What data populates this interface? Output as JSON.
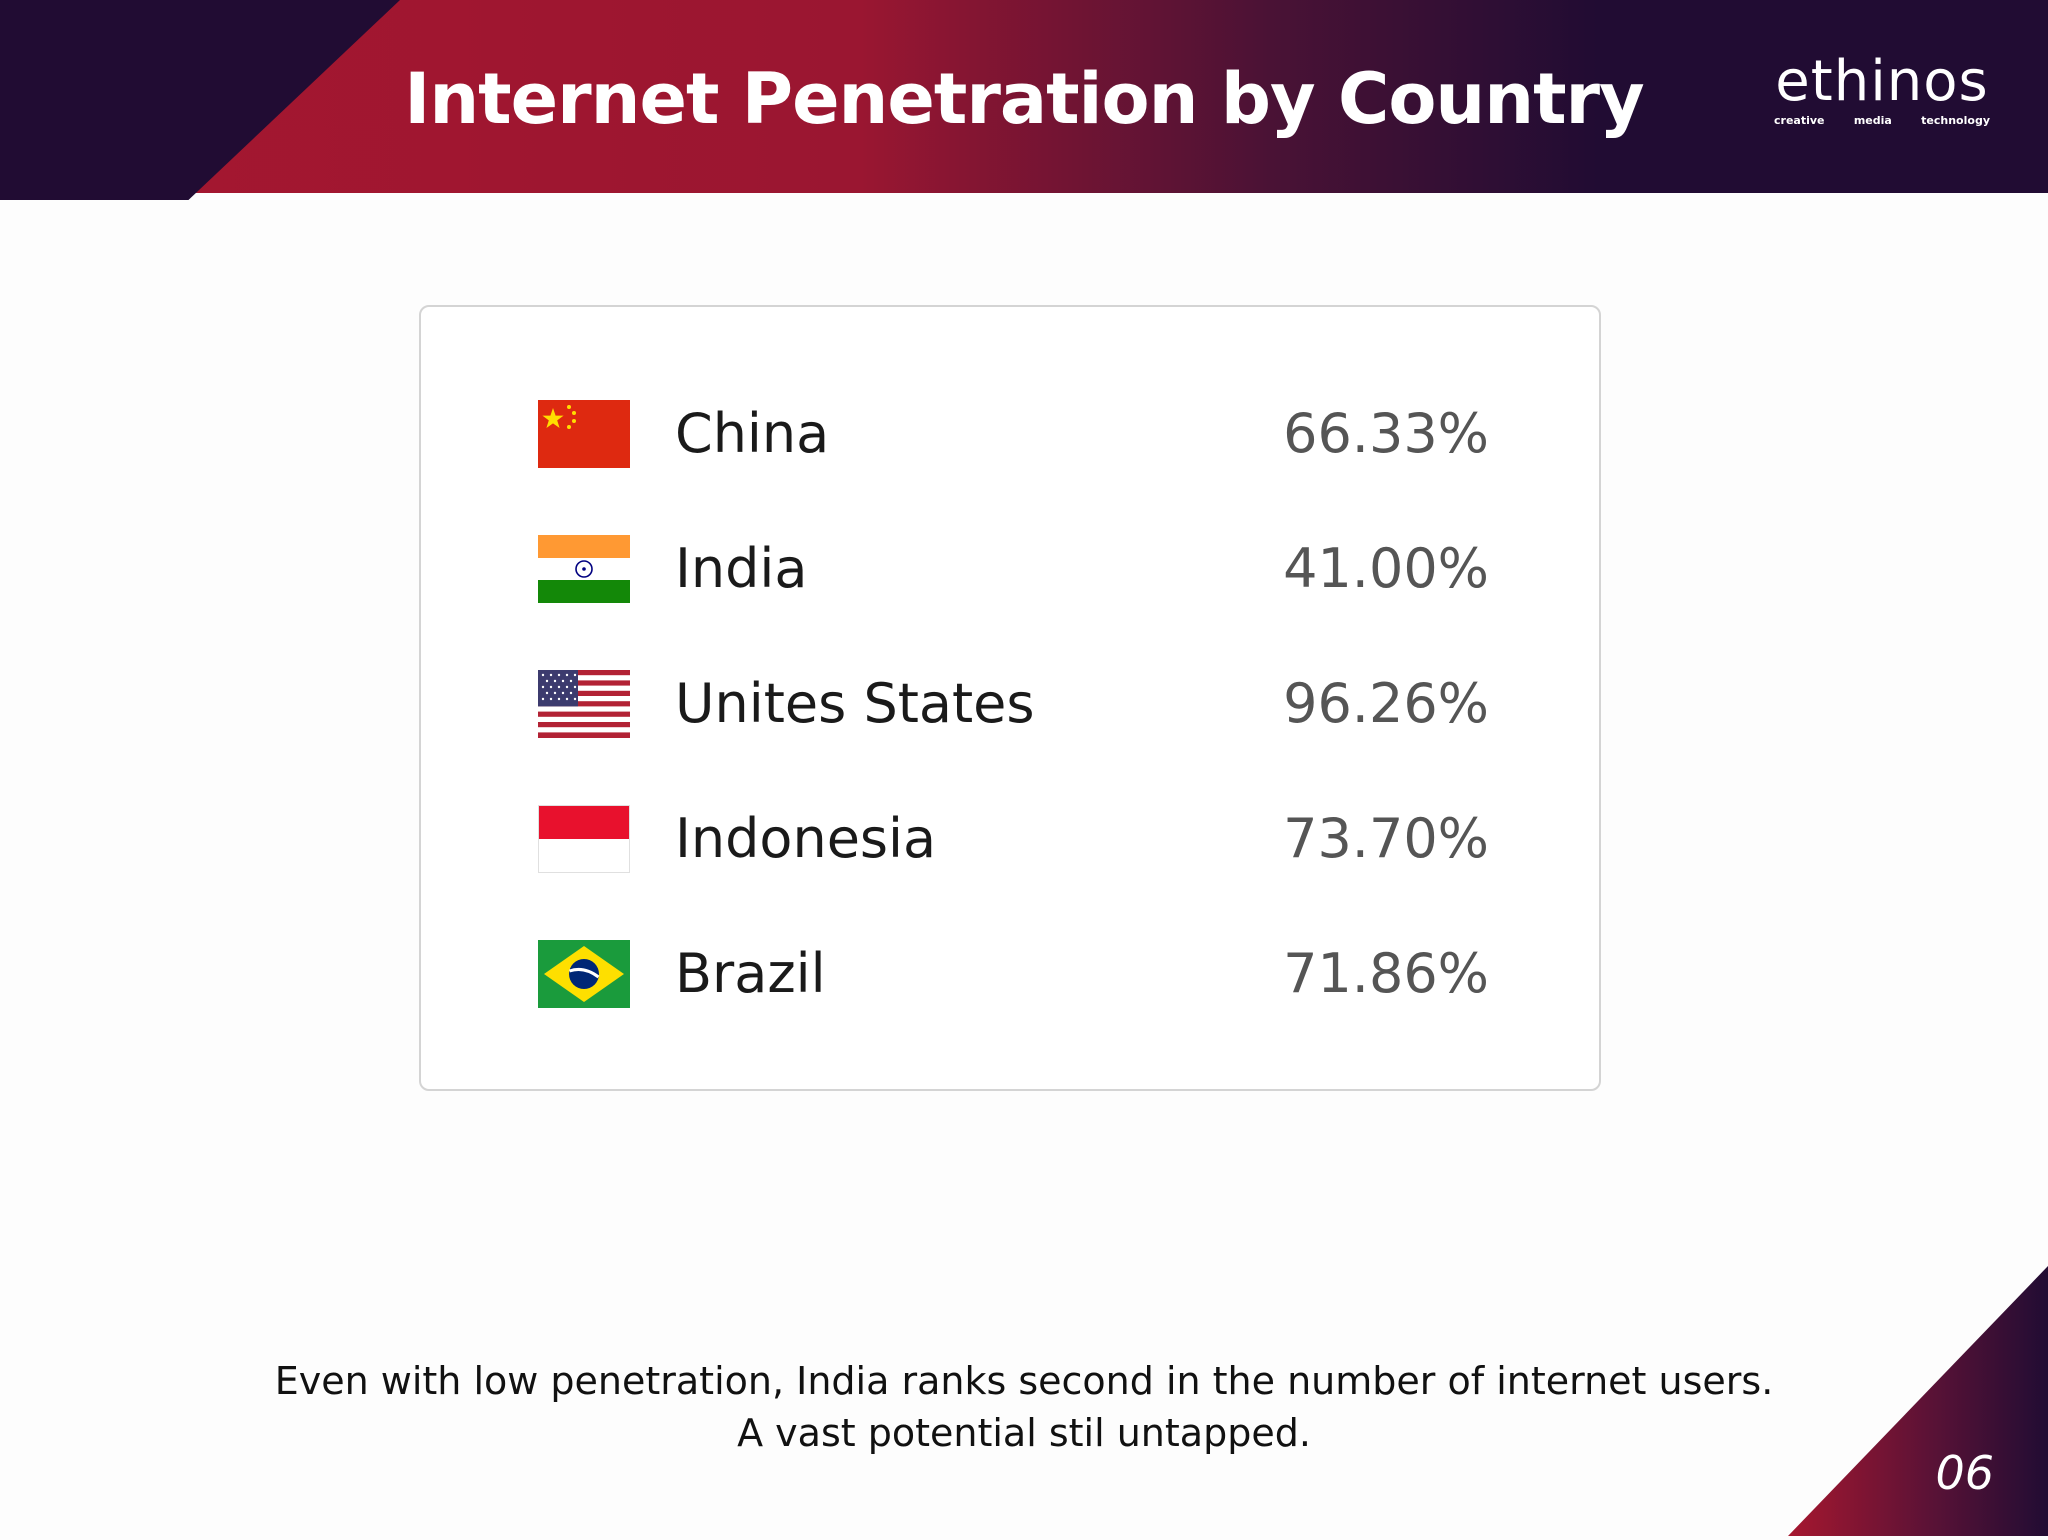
{
  "header": {
    "title": "Internet Penetration by Country",
    "logo": {
      "word": "ethinos",
      "tagline": [
        "creative",
        "media",
        "technology"
      ]
    }
  },
  "table": {
    "rows": [
      {
        "country": "China",
        "value": "66.33%",
        "flag_icon": "china-flag-icon"
      },
      {
        "country": "India",
        "value": "41.00%",
        "flag_icon": "india-flag-icon"
      },
      {
        "country": "Unites States",
        "value": "96.26%",
        "flag_icon": "usa-flag-icon"
      },
      {
        "country": "Indonesia",
        "value": "73.70%",
        "flag_icon": "indonesia-flag-icon"
      },
      {
        "country": "Brazil",
        "value": "71.86%",
        "flag_icon": "brazil-flag-icon"
      }
    ]
  },
  "footnote": {
    "line1": "Even with low penetration, India ranks second in the number of internet users.",
    "line2": "A vast potential stil untapped."
  },
  "page_number": "06",
  "colors": {
    "dark": "#210c33",
    "crimson": "#a6172f",
    "china_red": "#de2910",
    "india_saffron": "#ff9933",
    "india_green": "#138808",
    "brazil_green": "#1a9b3c",
    "brazil_yellow": "#fedf00",
    "us_blue": "#3c3b6e",
    "us_red": "#b22234"
  }
}
